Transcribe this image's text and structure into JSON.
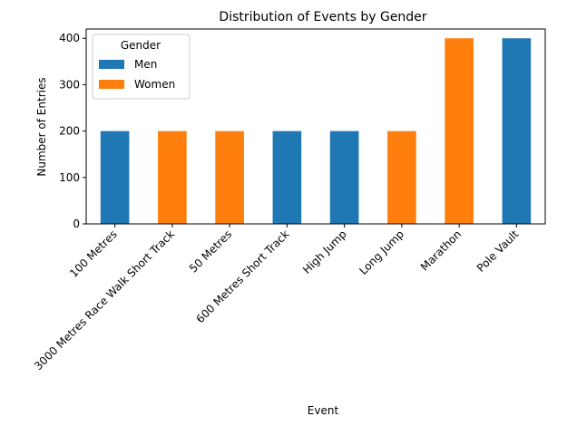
{
  "chart_data": {
    "type": "bar",
    "title": "Distribution of Events by Gender",
    "xlabel": "Event",
    "ylabel": "Number of Entries",
    "ylim": [
      0,
      420
    ],
    "yticks": [
      0,
      100,
      200,
      300,
      400
    ],
    "grid": false,
    "legend": {
      "title": "Gender",
      "placement": "top-left",
      "entries": [
        "Men",
        "Women"
      ]
    },
    "categories": [
      "100 Metres",
      "3000 Metres Race Walk Short Track",
      "50 Metres",
      "600 Metres Short Track",
      "High Jump",
      "Long Jump",
      "Marathon",
      "Pole Vault"
    ],
    "series": [
      {
        "name": "Men",
        "color": "#1f77b4",
        "values": [
          200,
          0,
          0,
          200,
          200,
          0,
          0,
          400
        ]
      },
      {
        "name": "Women",
        "color": "#ff7f0e",
        "values": [
          0,
          200,
          200,
          0,
          0,
          200,
          400,
          0
        ]
      }
    ]
  }
}
